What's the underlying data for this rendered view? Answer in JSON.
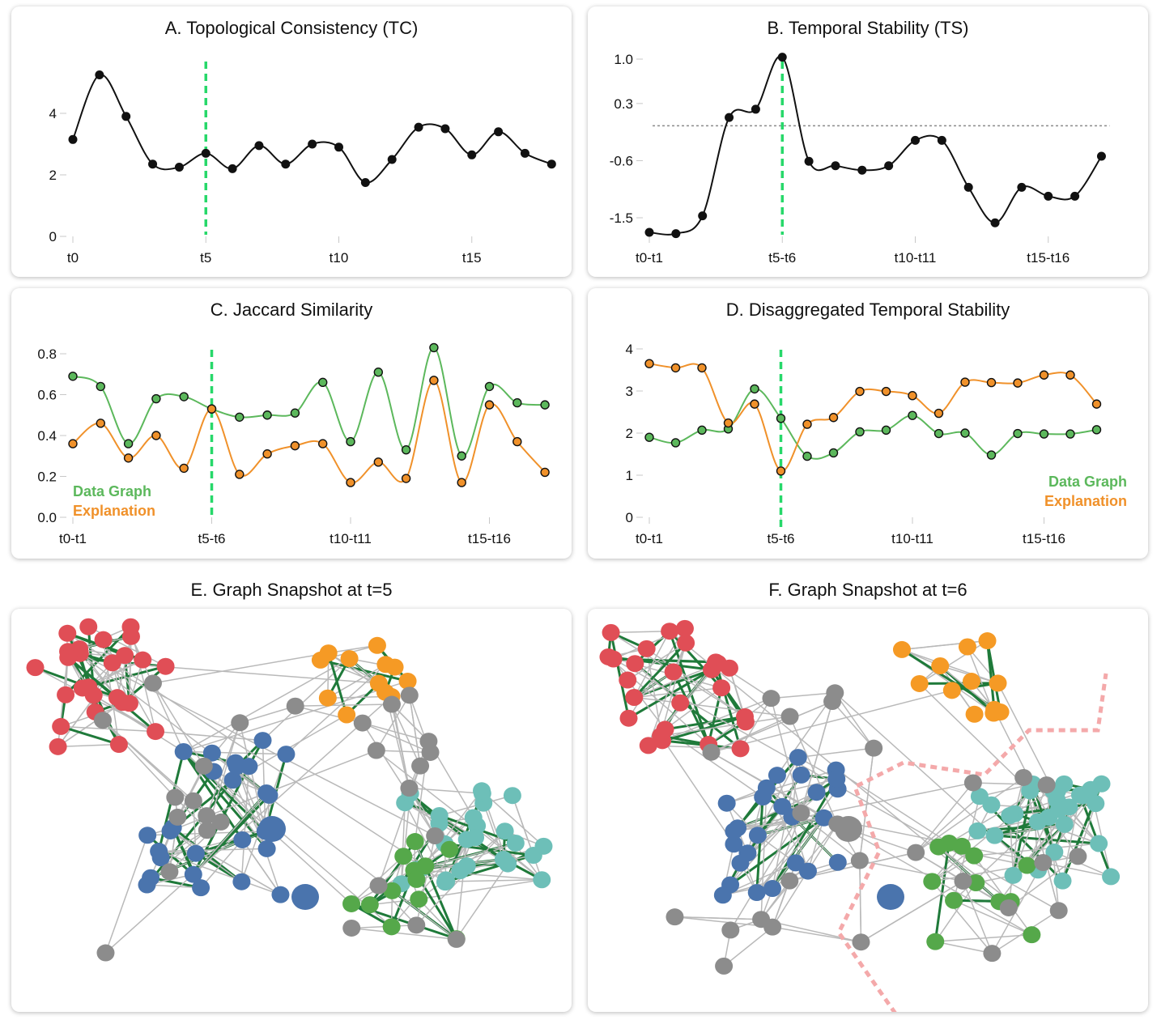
{
  "colors": {
    "line": "#111111",
    "green": "#5cb85c",
    "orange": "#f0912a",
    "marker": "#27d86a",
    "red": "#e04e56",
    "blue": "#4a74ad",
    "gray": "#8c8c8c",
    "orangeNode": "#f59a25",
    "teal": "#6dbfb8",
    "greenNode": "#55a84a",
    "darkEdge": "#1f7a3a",
    "edge": "#b9b9b9",
    "boundary": "#f4a9aa"
  },
  "chart_data": [
    {
      "id": "A",
      "type": "line",
      "title": "A. Topological Consistency (TC)",
      "x": [
        0,
        1,
        2,
        3,
        4,
        5,
        6,
        7,
        8,
        9,
        10,
        11,
        12,
        13,
        14,
        15,
        16,
        17,
        18
      ],
      "x_ticks": [
        {
          "at": 0,
          "label": "t0"
        },
        {
          "at": 5,
          "label": "t5"
        },
        {
          "at": 10,
          "label": "t10"
        },
        {
          "at": 15,
          "label": "t15"
        }
      ],
      "y_ticks": [
        0,
        2,
        4
      ],
      "ylim": [
        0,
        5.5
      ],
      "series": [
        {
          "values": [
            3.15,
            5.25,
            3.9,
            2.35,
            2.25,
            2.7,
            2.2,
            2.95,
            2.35,
            3.0,
            2.9,
            1.75,
            2.5,
            3.55,
            3.5,
            2.65,
            3.4,
            2.7,
            2.35
          ]
        }
      ],
      "marker_x": 5
    },
    {
      "id": "B",
      "type": "line",
      "title": "B. Temporal Stability (TS)",
      "x": [
        0,
        1,
        2,
        3,
        4,
        5,
        6,
        7,
        8,
        9,
        10,
        11,
        12,
        13,
        14,
        15,
        16,
        17
      ],
      "x_ticks": [
        {
          "at": 0,
          "label": "t0-t1"
        },
        {
          "at": 5,
          "label": "t5-t6"
        },
        {
          "at": 10,
          "label": "t10-t11"
        },
        {
          "at": 15,
          "label": "t15-t16"
        }
      ],
      "y_ticks": [
        {
          "value": 1.0,
          "label": "1.0"
        },
        {
          "value": 0.3,
          "label": "0.3"
        },
        {
          "value": -0.6,
          "label": "-0.6"
        },
        {
          "value": -1.5,
          "label": "-1.5"
        }
      ],
      "series": [
        {
          "values": [
            -1.73,
            -1.75,
            -1.47,
            0.08,
            0.21,
            1.03,
            -0.61,
            -0.68,
            -0.75,
            -0.68,
            -0.28,
            -0.28,
            -1.02,
            -1.58,
            -1.02,
            -1.16,
            -1.16,
            -0.53
          ]
        }
      ],
      "reference_line": -0.05,
      "marker_x": 5
    },
    {
      "id": "C",
      "type": "line",
      "title": "C. Jaccard Similarity",
      "x": [
        0,
        1,
        2,
        3,
        4,
        5,
        6,
        7,
        8,
        9,
        10,
        11,
        12,
        13,
        14,
        15,
        16,
        17
      ],
      "x_ticks": [
        {
          "at": 0,
          "label": "t0-t1"
        },
        {
          "at": 5,
          "label": "t5-t6"
        },
        {
          "at": 10,
          "label": "t10-t11"
        },
        {
          "at": 15,
          "label": "t15-t16"
        }
      ],
      "y_ticks": [
        {
          "value": 0.0,
          "label": "0.0"
        },
        {
          "value": 0.2,
          "label": "0.2"
        },
        {
          "value": 0.4,
          "label": "0.4"
        },
        {
          "value": 0.6,
          "label": "0.6"
        },
        {
          "value": 0.8,
          "label": "0.8"
        }
      ],
      "series": [
        {
          "name": "Data Graph",
          "color": "green",
          "values": [
            0.69,
            0.64,
            0.36,
            0.58,
            0.59,
            0.53,
            0.49,
            0.5,
            0.51,
            0.66,
            0.37,
            0.71,
            0.33,
            0.83,
            0.3,
            0.64,
            0.56,
            0.55
          ]
        },
        {
          "name": "Explanation",
          "color": "orange",
          "values": [
            0.36,
            0.46,
            0.29,
            0.4,
            0.24,
            0.53,
            0.21,
            0.31,
            0.35,
            0.36,
            0.17,
            0.27,
            0.19,
            0.67,
            0.17,
            0.55,
            0.37,
            0.22
          ]
        }
      ],
      "marker_x": 5
    },
    {
      "id": "D",
      "type": "line",
      "title": "D. Disaggregated Temporal Stability",
      "x": [
        0,
        1,
        2,
        3,
        4,
        5,
        6,
        7,
        8,
        9,
        10,
        11,
        12,
        13,
        14,
        15,
        16,
        17
      ],
      "x_ticks": [
        {
          "at": 0,
          "label": "t0-t1"
        },
        {
          "at": 5,
          "label": "t5-t6"
        },
        {
          "at": 10,
          "label": "t10-t11"
        },
        {
          "at": 15,
          "label": "t15-t16"
        }
      ],
      "y_ticks": [
        {
          "value": 0,
          "label": "0"
        },
        {
          "value": 1,
          "label": "1"
        },
        {
          "value": 2,
          "label": "2"
        },
        {
          "value": 3,
          "label": "3"
        },
        {
          "value": 4,
          "label": "4"
        }
      ],
      "series": [
        {
          "name": "Data Graph",
          "color": "green",
          "values": [
            1.9,
            1.77,
            2.07,
            2.1,
            3.05,
            2.35,
            1.45,
            1.53,
            2.03,
            2.07,
            2.42,
            1.99,
            2.0,
            1.48,
            1.99,
            1.98,
            1.98,
            2.08
          ]
        },
        {
          "name": "Explanation",
          "color": "orange",
          "values": [
            3.65,
            3.55,
            3.55,
            2.24,
            2.69,
            1.1,
            2.21,
            2.37,
            2.99,
            2.99,
            2.89,
            2.47,
            3.21,
            3.2,
            3.19,
            3.38,
            3.38,
            2.69
          ]
        }
      ],
      "marker_x": 5
    }
  ],
  "snapshots": [
    {
      "id": "E",
      "title": "E. Graph Snapshot at t=5"
    },
    {
      "id": "F",
      "title": "F. Graph Snapshot at t=6"
    }
  ]
}
